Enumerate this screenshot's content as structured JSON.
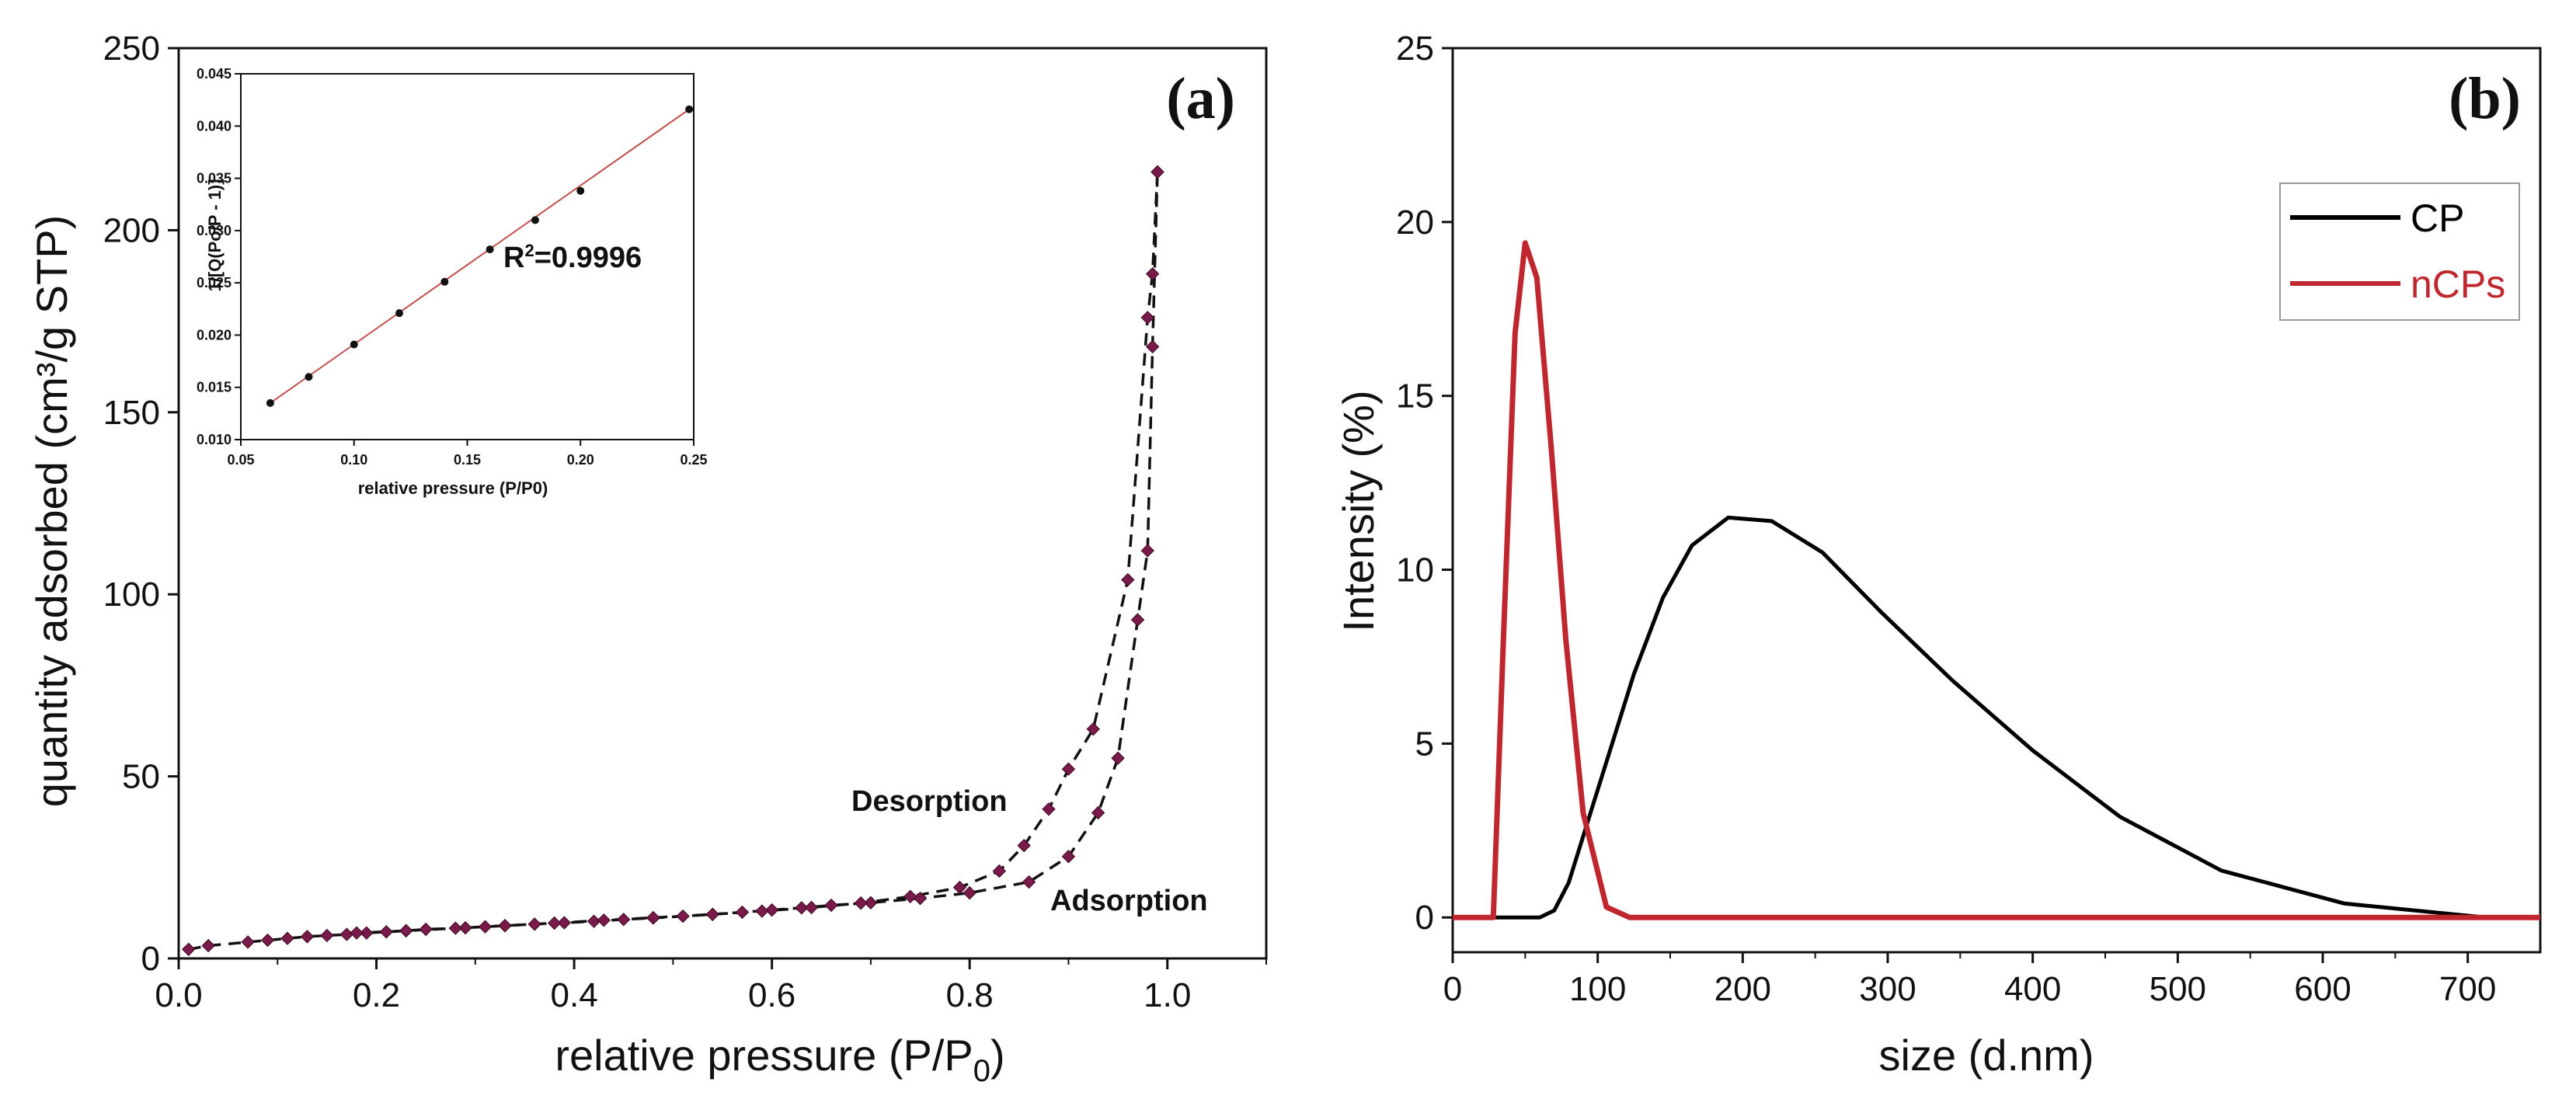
{
  "chart_data": [
    {
      "id": "a",
      "type": "scatter",
      "panel_label": "(a)",
      "xlabel": "relative pressure (P/P",
      "xlabel_sub": "0",
      "xlabel_end": ")",
      "ylabel": "quantity adsorbed (cm³/g STP)",
      "xlim": [
        0.0,
        1.1
      ],
      "ylim": [
        0,
        250
      ],
      "xticks": [
        "0.0",
        "0.2",
        "0.4",
        "0.6",
        "0.8",
        "1.0"
      ],
      "yticks": [
        "0",
        "50",
        "100",
        "150",
        "200",
        "250"
      ],
      "marker_color": "#7a1a4a",
      "series": [
        {
          "name": "Adsorption",
          "x": [
            0.01,
            0.03,
            0.07,
            0.09,
            0.11,
            0.13,
            0.15,
            0.17,
            0.19,
            0.21,
            0.23,
            0.25,
            0.29,
            0.31,
            0.33,
            0.36,
            0.39,
            0.42,
            0.45,
            0.48,
            0.51,
            0.54,
            0.57,
            0.6,
            0.63,
            0.66,
            0.7,
            0.75,
            0.8,
            0.86,
            0.9,
            0.93,
            0.95,
            0.97,
            0.98,
            0.985,
            0.99
          ],
          "y": [
            2.5,
            3.5,
            4.5,
            5,
            5.5,
            6,
            6.3,
            6.6,
            7,
            7.3,
            7.6,
            8,
            8.4,
            8.7,
            9,
            9.4,
            9.8,
            10.2,
            10.7,
            11.1,
            11.6,
            12.1,
            12.7,
            13.3,
            13.9,
            14.6,
            15.3,
            16.5,
            18,
            21,
            28,
            40,
            55,
            93,
            112,
            168,
            216
          ]
        },
        {
          "name": "Desorption",
          "x": [
            0.99,
            0.985,
            0.98,
            0.96,
            0.925,
            0.9,
            0.88,
            0.855,
            0.83,
            0.79,
            0.74,
            0.69,
            0.64,
            0.59,
            0.54,
            0.48,
            0.43,
            0.38,
            0.33,
            0.28,
            0.23,
            0.18
          ],
          "y": [
            216,
            188,
            176,
            104,
            63,
            52,
            41,
            31,
            24,
            19.5,
            17,
            15.2,
            14,
            13,
            12.1,
            11.2,
            10.5,
            9.7,
            9,
            8.3,
            7.6,
            7
          ]
        }
      ],
      "annotations": [
        "Desorption",
        "Adsorption"
      ],
      "inset": {
        "type": "line",
        "xlabel": "relative pressure (P/P0)",
        "ylabel": "1/[Q(Po/P - 1)]",
        "xlim": [
          0.05,
          0.25
        ],
        "ylim": [
          0.01,
          0.045
        ],
        "xticks": [
          "0.05",
          "0.10",
          "0.15",
          "0.20",
          "0.25"
        ],
        "yticks": [
          "0.010",
          "0.015",
          "0.020",
          "0.025",
          "0.030",
          "0.035",
          "0.040",
          "0.045"
        ],
        "x": [
          0.063,
          0.08,
          0.1,
          0.12,
          0.14,
          0.16,
          0.18,
          0.2,
          0.248
        ],
        "y": [
          0.0135,
          0.016,
          0.0191,
          0.0221,
          0.0251,
          0.0282,
          0.031,
          0.0338,
          0.0416
        ],
        "fit_color": "#c0504d",
        "r2_label": "R",
        "r2_sup": "2",
        "r2_value": "=0.9996"
      }
    },
    {
      "id": "b",
      "type": "line",
      "panel_label": "(b)",
      "xlabel": "size (d.nm)",
      "ylabel": "Intensity (%)",
      "xlim": [
        0,
        750
      ],
      "ylim": [
        -1,
        25
      ],
      "xticks": [
        "0",
        "100",
        "200",
        "300",
        "400",
        "500",
        "600",
        "700"
      ],
      "yticks": [
        "0",
        "5",
        "10",
        "15",
        "20",
        "25"
      ],
      "series": [
        {
          "name": "CP",
          "color": "#000000",
          "x": [
            0,
            60,
            70,
            80,
            95,
            110,
            125,
            145,
            165,
            190,
            220,
            255,
            295,
            345,
            400,
            460,
            530,
            615,
            712,
            750
          ],
          "y": [
            0,
            0,
            0.2,
            1.0,
            3.0,
            5.0,
            7.0,
            9.2,
            10.7,
            11.5,
            11.4,
            10.5,
            8.8,
            6.8,
            4.8,
            2.9,
            1.35,
            0.4,
            0,
            0
          ]
        },
        {
          "name": "nCPs",
          "color": "#c0262d",
          "x": [
            0,
            28,
            35,
            43,
            50,
            58,
            68,
            78,
            90,
            106,
            122,
            750
          ],
          "y": [
            0,
            0,
            8,
            16.8,
            19.4,
            18.4,
            13.5,
            8,
            3,
            0.3,
            0,
            0
          ]
        }
      ]
    }
  ]
}
